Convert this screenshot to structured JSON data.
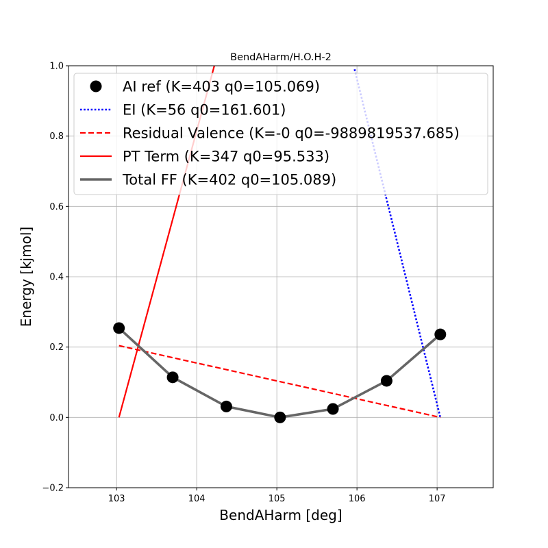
{
  "chart_data": {
    "type": "line",
    "title": "BendAHarm/H.O.H-2",
    "xlabel": "BendAHarm [deg]",
    "ylabel": "Energy [kjmol]",
    "xlim": [
      102.4,
      107.7
    ],
    "ylim": [
      -0.2,
      1.0
    ],
    "xticks": [
      103,
      104,
      105,
      106,
      107
    ],
    "yticks": [
      -0.2,
      0.0,
      0.2,
      0.4,
      0.6,
      0.8,
      1.0
    ],
    "xtick_labels": [
      "103",
      "104",
      "105",
      "106",
      "107"
    ],
    "ytick_labels": [
      "−0.2",
      "0.0",
      "0.2",
      "0.4",
      "0.6",
      "0.8",
      "1.0"
    ],
    "grid": true,
    "legend_position": "top-right",
    "series": [
      {
        "name": "AI ref (K=403 q0=105.069)",
        "style": "markers",
        "color": "#000000",
        "x": [
          103.03,
          103.7,
          104.37,
          105.04,
          105.7,
          106.37,
          107.04
        ],
        "y": [
          0.254,
          0.114,
          0.031,
          0.0,
          0.024,
          0.104,
          0.236
        ]
      },
      {
        "name": "EI (K=56 q0=161.601)",
        "style": "dotted",
        "color": "#0000ff",
        "x": [
          105.97,
          107.04
        ],
        "y": [
          0.99,
          0.0
        ]
      },
      {
        "name": "Residual Valence (K=-0 q0=-9889819537.685)",
        "style": "dashed",
        "color": "#ff0000",
        "x": [
          103.03,
          107.04
        ],
        "y": [
          0.204,
          0.0
        ]
      },
      {
        "name": "PT Term (K=347 q0=95.533)",
        "style": "solid",
        "color": "#ff0000",
        "x": [
          103.03,
          104.22
        ],
        "y": [
          0.0,
          1.0
        ]
      },
      {
        "name": "Total FF (K=402 q0=105.089)",
        "style": "thick",
        "color": "#666666",
        "x": [
          103.03,
          103.7,
          104.37,
          105.04,
          105.7,
          106.37,
          107.04
        ],
        "y": [
          0.254,
          0.114,
          0.031,
          0.0,
          0.024,
          0.104,
          0.236
        ]
      }
    ]
  }
}
